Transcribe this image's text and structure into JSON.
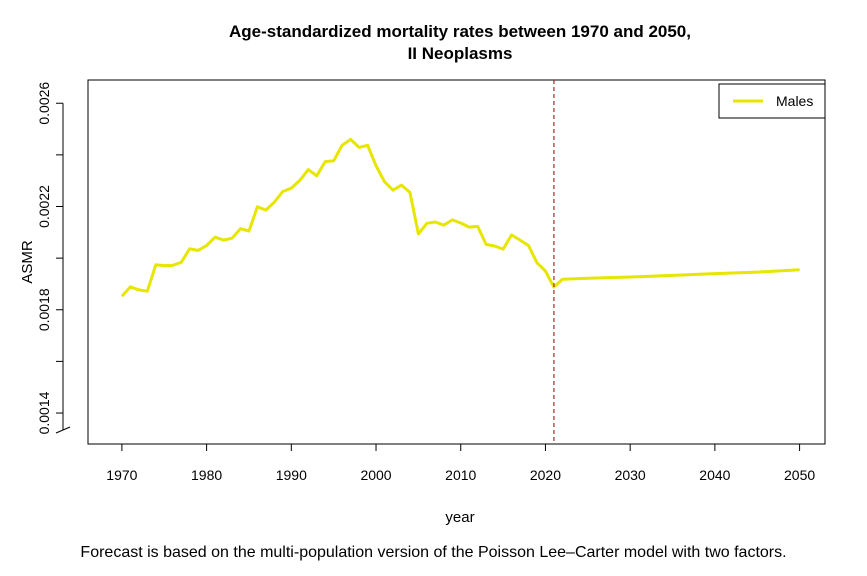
{
  "chart_data": {
    "type": "line",
    "title": [
      "Age-standardized mortality rates between 1970 and 2050,",
      "II Neoplasms"
    ],
    "xlabel": "year",
    "ylabel": "ASMR",
    "xlim": [
      1966,
      2053
    ],
    "ylim": [
      0.00128,
      0.00269
    ],
    "x_ticks": [
      1970,
      1980,
      1990,
      2000,
      2010,
      2020,
      2030,
      2040,
      2050
    ],
    "y_ticks": [
      0.0014,
      0.0018,
      0.0022,
      0.0026
    ],
    "y_tick_labels": [
      "0.0014",
      "0.0018",
      "0.0022",
      "0.0026"
    ],
    "grid": false,
    "legend_position": "top-right",
    "forecast_start_year": 2021,
    "series": [
      {
        "name": "Males",
        "color": "#e6e600",
        "x": [
          1970,
          1971,
          1972,
          1973,
          1974,
          1975,
          1976,
          1977,
          1978,
          1979,
          1980,
          1981,
          1982,
          1983,
          1984,
          1985,
          1986,
          1987,
          1988,
          1989,
          1990,
          1991,
          1992,
          1993,
          1994,
          1995,
          1996,
          1997,
          1998,
          1999,
          2000,
          2001,
          2002,
          2003,
          2004,
          2005,
          2006,
          2007,
          2008,
          2009,
          2010,
          2011,
          2012,
          2013,
          2014,
          2015,
          2016,
          2017,
          2018,
          2019,
          2020,
          2021,
          2022,
          2025,
          2030,
          2035,
          2040,
          2045,
          2050
        ],
        "values": [
          0.001852,
          0.001889,
          0.001877,
          0.001872,
          0.001974,
          0.001971,
          0.001972,
          0.001984,
          0.002036,
          0.00203,
          0.002049,
          0.002081,
          0.00207,
          0.002077,
          0.002114,
          0.002105,
          0.002199,
          0.002186,
          0.002217,
          0.002258,
          0.002271,
          0.002301,
          0.002343,
          0.002319,
          0.002374,
          0.002377,
          0.002437,
          0.00246,
          0.002429,
          0.002437,
          0.002358,
          0.002296,
          0.002263,
          0.002283,
          0.002255,
          0.002094,
          0.002135,
          0.00214,
          0.002128,
          0.002148,
          0.002136,
          0.00212,
          0.002123,
          0.002053,
          0.002047,
          0.002035,
          0.00209,
          0.00207,
          0.002049,
          0.001982,
          0.00195,
          0.001888,
          0.001918,
          0.001922,
          0.001927,
          0.001933,
          0.00194,
          0.001946,
          0.001955
        ]
      }
    ]
  },
  "caption": "Forecast is based on the multi-population version of the Poisson Lee–Carter model with two factors."
}
